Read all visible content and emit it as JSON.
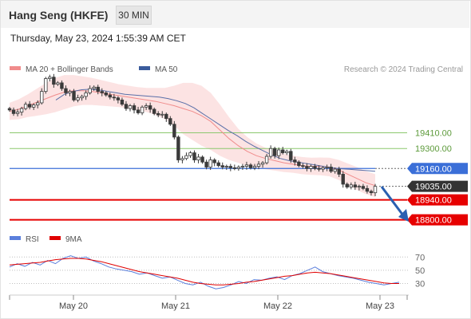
{
  "header": {
    "title": "Hang Seng (HKFE)",
    "timeframe": "30 MIN",
    "timestamp": "Thursday, May 23, 2024 1:55:39 AM CET"
  },
  "legend": {
    "items": [
      {
        "label": "MA 20 + Bollinger Bands",
        "color": "#f08c8c"
      },
      {
        "label": "MA 50",
        "color": "#3a5b9c"
      }
    ],
    "copyright": "Research © 2024 Trading Central"
  },
  "rsi_legend": {
    "items": [
      {
        "label": "RSI",
        "color": "#5b7fdc"
      },
      {
        "label": "9MA",
        "color": "#e00000"
      }
    ]
  },
  "chart_data": [
    {
      "type": "candlestick",
      "title": "Hang Seng (HKFE)",
      "xlabel": "",
      "ylabel": "",
      "x_ticks": [
        "May 20",
        "May 21",
        "May 22",
        "May 23"
      ],
      "ylim": [
        18720,
        19860
      ],
      "grid": false,
      "levels": [
        {
          "value": 19410.0,
          "label": "19410.00",
          "kind": "resistance",
          "color": "#8cc86e"
        },
        {
          "value": 19300.0,
          "label": "19300.00",
          "kind": "resistance",
          "color": "#8cc86e"
        },
        {
          "value": 19160.0,
          "label": "19160.00",
          "kind": "pivot",
          "color": "#3b6fd8"
        },
        {
          "value": 19035.0,
          "label": "19035.00",
          "kind": "last-price",
          "color": "#333333"
        },
        {
          "value": 18940.0,
          "label": "18940.00",
          "kind": "support",
          "color": "#e60000"
        },
        {
          "value": 18800.0,
          "label": "18800.00",
          "kind": "support",
          "color": "#e60000"
        }
      ],
      "close_series": [
        19570,
        19545,
        19555,
        19580,
        19610,
        19590,
        19605,
        19620,
        19700,
        19790,
        19800,
        19750,
        19760,
        19720,
        19690,
        19700,
        19640,
        19655,
        19665,
        19690,
        19720,
        19730,
        19700,
        19690,
        19675,
        19660,
        19655,
        19640,
        19610,
        19580,
        19600,
        19570,
        19550,
        19590,
        19600,
        19575,
        19545,
        19535,
        19540,
        19510,
        19470,
        19380,
        19220,
        19230,
        19250,
        19270,
        19220,
        19240,
        19205,
        19170,
        19220,
        19200,
        19180,
        19170,
        19175,
        19165,
        19160,
        19170,
        19175,
        19185,
        19165,
        19175,
        19190,
        19200,
        19245,
        19300,
        19250,
        19290,
        19270,
        19280,
        19220,
        19205,
        19180,
        19175,
        19160,
        19175,
        19160,
        19155,
        19165,
        19170,
        19140,
        19155,
        19120,
        19050,
        19030,
        19045,
        19030,
        19035,
        19020,
        19000,
        18990,
        19035
      ],
      "ma20": [
        19560,
        19575,
        19600,
        19625,
        19650,
        19675,
        19695,
        19705,
        19705,
        19700,
        19690,
        19680,
        19670,
        19660,
        19650,
        19640,
        19630,
        19615,
        19600,
        19580,
        19560,
        19530,
        19490,
        19430,
        19370,
        19320,
        19280,
        19250,
        19230,
        19215,
        19200,
        19190,
        19180,
        19175,
        19175,
        19170,
        19150,
        19120,
        19090,
        19060,
        19040
      ],
      "ma50": [
        19640,
        19680,
        19700,
        19712,
        19715,
        19710,
        19700,
        19690,
        19680,
        19675,
        19670,
        19665,
        19660,
        19650,
        19635,
        19615,
        19585,
        19545,
        19505,
        19465,
        19425,
        19390,
        19350,
        19315,
        19285,
        19255,
        19230,
        19215,
        19205,
        19195,
        19185,
        19175,
        19165,
        19158,
        19155,
        19150,
        19145,
        19140
      ]
    },
    {
      "type": "line",
      "title": "",
      "ylim": [
        15,
        80
      ],
      "y_ticks": [
        70,
        50,
        30
      ],
      "series": [
        {
          "name": "RSI",
          "color": "#5b7fdc",
          "values": [
            55,
            60,
            56,
            62,
            58,
            65,
            60,
            68,
            72,
            68,
            70,
            64,
            60,
            55,
            52,
            50,
            48,
            44,
            46,
            42,
            38,
            40,
            35,
            30,
            28,
            32,
            26,
            22,
            24,
            28,
            33,
            30,
            36,
            35,
            38,
            40,
            36,
            42,
            45,
            50,
            55,
            48,
            45,
            42,
            40,
            38,
            35,
            32,
            30,
            28,
            30,
            32
          ]
        },
        {
          "name": "9MA",
          "color": "#e00000",
          "values": [
            58,
            59,
            60,
            61,
            62,
            64,
            66,
            67,
            68,
            68,
            67,
            65,
            63,
            60,
            57,
            54,
            51,
            48,
            46,
            44,
            42,
            40,
            38,
            35,
            32,
            30,
            29,
            28,
            28,
            29,
            30,
            32,
            33,
            35,
            37,
            39,
            41,
            42,
            44,
            46,
            47,
            46,
            45,
            43,
            41,
            39,
            37,
            35,
            33,
            31,
            30,
            30
          ]
        }
      ]
    }
  ]
}
